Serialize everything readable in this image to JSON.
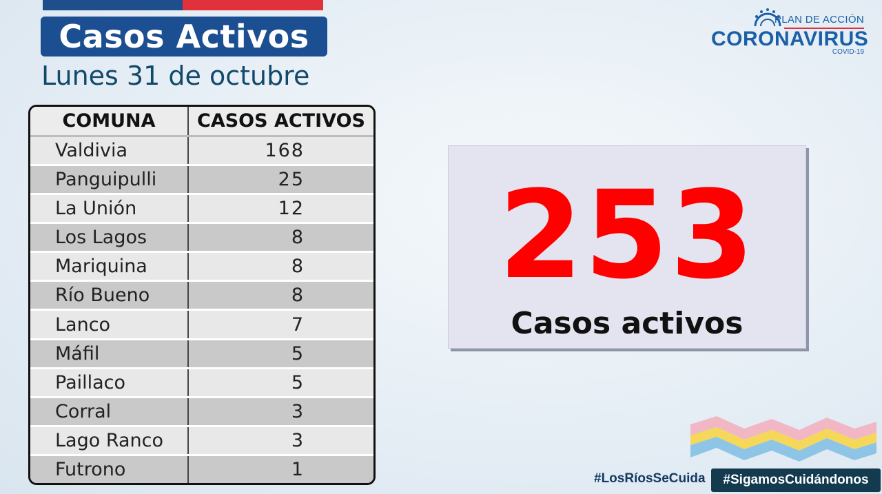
{
  "header": {
    "title": "Casos Activos",
    "date": "Lunes 31 de octubre"
  },
  "logo": {
    "plan": "PLAN DE ACCIÓN",
    "name": "CORONAVIRUS",
    "sub": "COVID-19"
  },
  "table": {
    "headers": [
      "COMUNA",
      "CASOS ACTIVOS"
    ],
    "rows": [
      {
        "comuna": "Valdivia",
        "casos": "168"
      },
      {
        "comuna": "Panguipulli",
        "casos": "25"
      },
      {
        "comuna": "La Unión",
        "casos": "12"
      },
      {
        "comuna": "Los Lagos",
        "casos": "8"
      },
      {
        "comuna": "Mariquina",
        "casos": "8"
      },
      {
        "comuna": "Río Bueno",
        "casos": "8"
      },
      {
        "comuna": "Lanco",
        "casos": "7"
      },
      {
        "comuna": "Máfil",
        "casos": "5"
      },
      {
        "comuna": "Paillaco",
        "casos": "5"
      },
      {
        "comuna": "Corral",
        "casos": "3"
      },
      {
        "comuna": "Lago Ranco",
        "casos": "3"
      },
      {
        "comuna": "Futrono",
        "casos": "1"
      }
    ]
  },
  "total": {
    "value": "253",
    "label": "Casos activos"
  },
  "footer": {
    "tag1": "#LosRíosSeCuida",
    "tag2": "#SigamosCuidándonos"
  },
  "colors": {
    "title_bg": "#1b4f91",
    "total_value": "#ff0000",
    "accent_red": "#e1323c"
  }
}
